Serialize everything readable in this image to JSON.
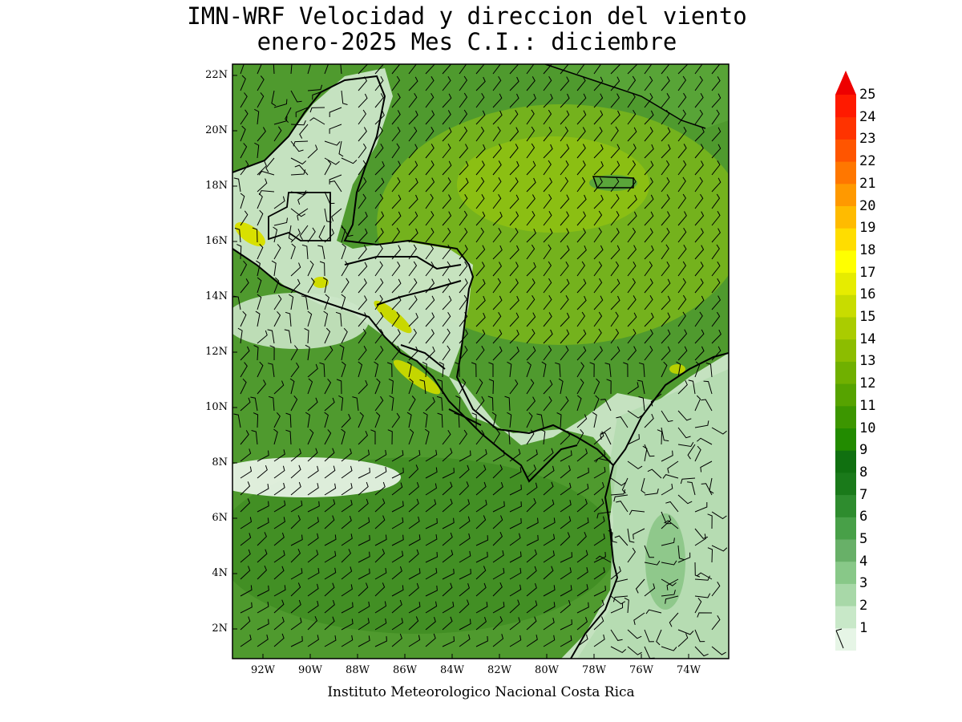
{
  "title_line1": "IMN-WRF Velocidad y direccion del viento",
  "title_line2": "enero-2025 Mes C.I.: diciembre",
  "footer": "Instituto Meteorologico Nacional Costa Rica",
  "lat_labels": [
    "22N",
    "20N",
    "18N",
    "16N",
    "14N",
    "12N",
    "10N",
    "8N",
    "6N",
    "4N",
    "2N"
  ],
  "lon_labels": [
    "92W",
    "90W",
    "88W",
    "86W",
    "84W",
    "82W",
    "80W",
    "78W",
    "76W",
    "74W"
  ],
  "colorbar": {
    "labels": [
      "25",
      "24",
      "23",
      "22",
      "21",
      "20",
      "19",
      "18",
      "17",
      "16",
      "15",
      "14",
      "13",
      "12",
      "11",
      "10",
      "9",
      "8",
      "7",
      "6",
      "5",
      "4",
      "3",
      "2",
      "1"
    ],
    "colors": [
      "#e6f5e6",
      "#c8e8c8",
      "#a8d8a8",
      "#88c888",
      "#68b068",
      "#48a048",
      "#2e8c2e",
      "#1a7a1a",
      "#107010",
      "#228b00",
      "#3c9600",
      "#56a300",
      "#70b000",
      "#8cbd00",
      "#aacc00",
      "#c8dc00",
      "#e6ec00",
      "#ffff00",
      "#ffdd00",
      "#ffbb00",
      "#ff9900",
      "#ff7700",
      "#ff5500",
      "#ff3300",
      "#ff1a00"
    ],
    "arrow_color": "#ee0000"
  }
}
